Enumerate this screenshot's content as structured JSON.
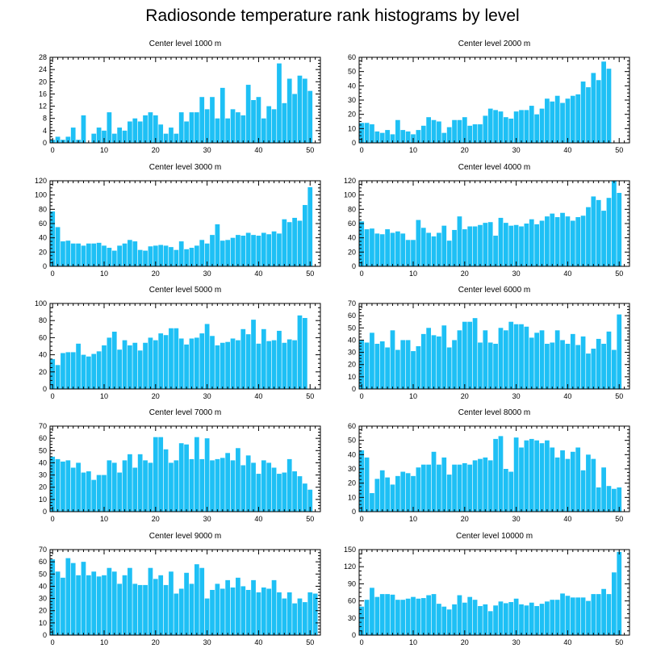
{
  "title": "Radiosonde temperature rank histograms by level",
  "colors": {
    "bar": "#1ec0f5",
    "axis": "#000000"
  },
  "chart_data": [
    {
      "type": "bar",
      "title": "Center level 1000 m",
      "ylim": [
        0,
        28
      ],
      "yticks": [
        0,
        4,
        8,
        12,
        16,
        20,
        24,
        28
      ],
      "xlim": [
        -0.5,
        52
      ],
      "xticks": [
        0,
        10,
        20,
        30,
        40,
        50
      ],
      "values": [
        1,
        2,
        1,
        2,
        5,
        1,
        9,
        0,
        3,
        5,
        4,
        10,
        3,
        5,
        4,
        7,
        8,
        7,
        9,
        10,
        9,
        6,
        3,
        5,
        3,
        10,
        7,
        10,
        10,
        15,
        11,
        15,
        8,
        18,
        8,
        11,
        10,
        9,
        19,
        14,
        15,
        8,
        12,
        11,
        26,
        13,
        21,
        16,
        22,
        21,
        17
      ]
    },
    {
      "type": "bar",
      "title": "Center level 2000 m",
      "ylim": [
        0,
        60
      ],
      "yticks": [
        0,
        10,
        20,
        30,
        40,
        50,
        60
      ],
      "xlim": [
        -0.5,
        52
      ],
      "xticks": [
        0,
        10,
        20,
        30,
        40,
        50
      ],
      "values": [
        14,
        14,
        13,
        8,
        7,
        9,
        6,
        16,
        9,
        8,
        6,
        9,
        12,
        18,
        16,
        15,
        7,
        11,
        16,
        16,
        18,
        12,
        13,
        13,
        19,
        24,
        23,
        22,
        18,
        17,
        22,
        23,
        23,
        26,
        20,
        24,
        31,
        29,
        33,
        28,
        31,
        33,
        34,
        43,
        39,
        49,
        44,
        57,
        52
      ]
    },
    {
      "type": "bar",
      "title": "Center level 3000 m",
      "ylim": [
        0,
        120
      ],
      "yticks": [
        0,
        20,
        40,
        60,
        80,
        100,
        120
      ],
      "xlim": [
        -0.5,
        52
      ],
      "xticks": [
        0,
        10,
        20,
        30,
        40,
        50
      ],
      "values": [
        77,
        55,
        35,
        36,
        32,
        32,
        29,
        32,
        32,
        33,
        29,
        26,
        22,
        29,
        32,
        37,
        35,
        23,
        22,
        28,
        29,
        30,
        29,
        27,
        23,
        35,
        24,
        26,
        29,
        37,
        32,
        44,
        59,
        36,
        37,
        40,
        44,
        43,
        47,
        44,
        43,
        47,
        45,
        49,
        46,
        66,
        62,
        68,
        64,
        86,
        111
      ]
    },
    {
      "type": "bar",
      "title": "Center level 4000 m",
      "ylim": [
        0,
        120
      ],
      "yticks": [
        0,
        20,
        40,
        60,
        80,
        100,
        120
      ],
      "xlim": [
        -0.5,
        52
      ],
      "xticks": [
        0,
        10,
        20,
        30,
        40,
        50
      ],
      "values": [
        63,
        52,
        53,
        46,
        45,
        52,
        47,
        49,
        46,
        37,
        37,
        65,
        54,
        47,
        42,
        47,
        57,
        36,
        51,
        70,
        52,
        56,
        56,
        58,
        61,
        62,
        43,
        68,
        61,
        57,
        58,
        56,
        60,
        66,
        59,
        64,
        70,
        74,
        69,
        75,
        70,
        64,
        69,
        71,
        83,
        98,
        93,
        78,
        96,
        120,
        103
      ]
    },
    {
      "type": "bar",
      "title": "Center level 5000 m",
      "ylim": [
        0,
        100
      ],
      "yticks": [
        0,
        20,
        40,
        60,
        80,
        100
      ],
      "xlim": [
        -0.5,
        52
      ],
      "xticks": [
        0,
        10,
        20,
        30,
        40,
        50
      ],
      "values": [
        35,
        28,
        42,
        43,
        43,
        53,
        40,
        38,
        41,
        44,
        51,
        60,
        67,
        46,
        57,
        51,
        54,
        45,
        54,
        60,
        57,
        65,
        63,
        71,
        71,
        59,
        52,
        59,
        60,
        65,
        76,
        62,
        51,
        54,
        55,
        59,
        57,
        70,
        64,
        81,
        53,
        70,
        56,
        57,
        68,
        54,
        58,
        57,
        86,
        83
      ]
    },
    {
      "type": "bar",
      "title": "Center level 6000 m",
      "ylim": [
        0,
        70
      ],
      "yticks": [
        0,
        10,
        20,
        30,
        40,
        50,
        60,
        70
      ],
      "xlim": [
        -0.5,
        52
      ],
      "xticks": [
        0,
        10,
        20,
        30,
        40,
        50
      ],
      "values": [
        40,
        38,
        46,
        37,
        39,
        34,
        48,
        32,
        40,
        40,
        31,
        35,
        45,
        50,
        44,
        43,
        52,
        34,
        40,
        48,
        55,
        55,
        58,
        38,
        48,
        38,
        37,
        50,
        48,
        55,
        53,
        53,
        51,
        42,
        46,
        48,
        37,
        38,
        48,
        40,
        37,
        45,
        36,
        43,
        29,
        33,
        41,
        37,
        47,
        32,
        61
      ]
    },
    {
      "type": "bar",
      "title": "Center level 7000 m",
      "ylim": [
        0,
        70
      ],
      "yticks": [
        0,
        10,
        20,
        30,
        40,
        50,
        60,
        70
      ],
      "xlim": [
        -0.5,
        52
      ],
      "xticks": [
        0,
        10,
        20,
        30,
        40,
        50
      ],
      "values": [
        45,
        43,
        41,
        42,
        36,
        40,
        32,
        33,
        26,
        30,
        30,
        42,
        40,
        32,
        42,
        47,
        36,
        47,
        42,
        40,
        61,
        61,
        51,
        40,
        42,
        56,
        55,
        43,
        61,
        43,
        60,
        42,
        43,
        44,
        48,
        42,
        52,
        38,
        46,
        40,
        31,
        42,
        40,
        36,
        31,
        32,
        43,
        33,
        29,
        23,
        18
      ]
    },
    {
      "type": "bar",
      "title": "Center level 8000 m",
      "ylim": [
        0,
        60
      ],
      "yticks": [
        0,
        10,
        20,
        30,
        40,
        50,
        60
      ],
      "xlim": [
        -0.5,
        52
      ],
      "xticks": [
        0,
        10,
        20,
        30,
        40,
        50
      ],
      "values": [
        43,
        38,
        13,
        23,
        29,
        24,
        19,
        25,
        28,
        27,
        25,
        31,
        33,
        33,
        42,
        33,
        38,
        26,
        33,
        33,
        34,
        33,
        36,
        37,
        38,
        36,
        51,
        53,
        30,
        28,
        52,
        45,
        50,
        51,
        50,
        48,
        50,
        45,
        38,
        43,
        37,
        42,
        45,
        29,
        40,
        37,
        17,
        31,
        18,
        16,
        17
      ]
    },
    {
      "type": "bar",
      "title": "Center level 9000 m",
      "ylim": [
        0,
        70
      ],
      "yticks": [
        0,
        10,
        20,
        30,
        40,
        50,
        60,
        70
      ],
      "xlim": [
        -0.5,
        52
      ],
      "xticks": [
        0,
        10,
        20,
        30,
        40,
        50
      ],
      "values": [
        62,
        52,
        47,
        63,
        59,
        49,
        60,
        49,
        52,
        48,
        49,
        55,
        52,
        42,
        49,
        55,
        42,
        41,
        41,
        55,
        46,
        49,
        41,
        52,
        34,
        38,
        51,
        42,
        58,
        55,
        30,
        37,
        42,
        38,
        45,
        39,
        47,
        40,
        37,
        45,
        35,
        39,
        38,
        45,
        35,
        30,
        35,
        26,
        30,
        27,
        35,
        34
      ]
    },
    {
      "type": "bar",
      "title": "Center level 10000 m",
      "ylim": [
        0,
        150
      ],
      "yticks": [
        0,
        30,
        60,
        90,
        120,
        150
      ],
      "xlim": [
        -0.5,
        52
      ],
      "xticks": [
        0,
        10,
        20,
        30,
        40,
        50
      ],
      "values": [
        50,
        62,
        83,
        67,
        72,
        72,
        71,
        62,
        62,
        64,
        67,
        64,
        65,
        70,
        72,
        55,
        50,
        45,
        54,
        70,
        57,
        67,
        62,
        51,
        54,
        42,
        52,
        59,
        56,
        58,
        64,
        54,
        52,
        57,
        51,
        55,
        59,
        62,
        62,
        73,
        69,
        66,
        66,
        66,
        60,
        72,
        72,
        81,
        72,
        110,
        146
      ]
    }
  ]
}
